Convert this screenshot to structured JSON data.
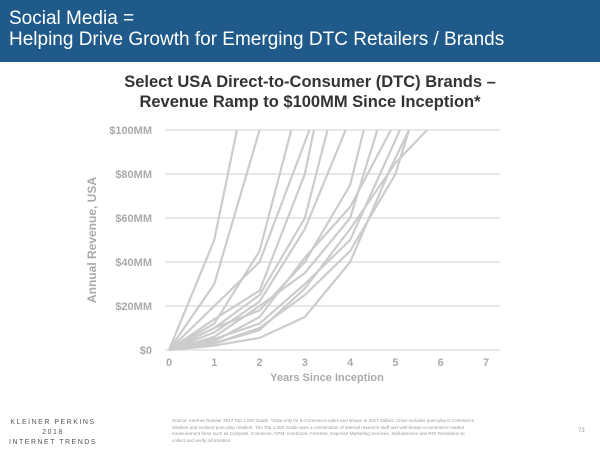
{
  "header": {
    "line1": "Social Media =",
    "line2": "Helping Drive Growth for Emerging DTC Retailers / Brands"
  },
  "footer": {
    "brand": [
      "KLEINER PERKINS",
      "2018",
      "INTERNET TRENDS"
    ],
    "source": "Source: Internet Retailer 2017 Top 1,000 Guide. *Data only for E-Commerce sales and shown in 2017 dollars. Chart includes pure-play E-Commerce retailers and evolved pure-play retailers. The Top 1,000 Guide uses a combination of internal research staff and well-known e-commerce market measurement firms such as Compete, Comscore, KPM, comScore, ForeSee, Experian Marketing Services, StellaService and ROI Revolution to collect and verify information.",
    "page": "73"
  },
  "chart_data": {
    "type": "line",
    "title": "Select USA Direct-to-Consumer (DTC) Brands – Revenue Ramp to $100MM Since Inception*",
    "title_lines": [
      "Select USA Direct-to-Consumer (DTC) Brands –",
      "Revenue Ramp to $100MM Since Inception*"
    ],
    "xlabel": "Years Since Inception",
    "ylabel": "Annual Revenue, USA",
    "xlim": [
      0,
      7
    ],
    "ylim": [
      0,
      100
    ],
    "xticks": [
      "0",
      "1",
      "2",
      "3",
      "4",
      "5",
      "6",
      "7"
    ],
    "yticks": [
      {
        "v": 0,
        "label": "$0"
      },
      {
        "v": 20,
        "label": "$20MM"
      },
      {
        "v": 40,
        "label": "$40MM"
      },
      {
        "v": 60,
        "label": "$60MM"
      },
      {
        "v": 80,
        "label": "$80MM"
      },
      {
        "v": 100,
        "label": "$100MM"
      }
    ],
    "grid": true,
    "color": "#cccccc",
    "series": [
      {
        "x": [
          0,
          1,
          1.5
        ],
        "y": [
          0,
          50,
          100
        ]
      },
      {
        "x": [
          0,
          1,
          2
        ],
        "y": [
          0,
          30,
          100
        ]
      },
      {
        "x": [
          0,
          1,
          2,
          2.7
        ],
        "y": [
          0,
          12,
          45,
          100
        ]
      },
      {
        "x": [
          0,
          1,
          2,
          3.1
        ],
        "y": [
          0,
          20,
          40,
          100
        ]
      },
      {
        "x": [
          0,
          1,
          2,
          3,
          3.2
        ],
        "y": [
          0,
          14,
          27,
          80,
          100
        ]
      },
      {
        "x": [
          0,
          1,
          2,
          3,
          3.5
        ],
        "y": [
          0,
          10,
          25,
          60,
          100
        ]
      },
      {
        "x": [
          0,
          1,
          2,
          3,
          3.9
        ],
        "y": [
          0,
          8,
          22,
          55,
          100
        ]
      },
      {
        "x": [
          0,
          1,
          2,
          3,
          4,
          4.3
        ],
        "y": [
          0,
          10,
          18,
          40,
          75,
          100
        ]
      },
      {
        "x": [
          0,
          1,
          2,
          3,
          4,
          4.6
        ],
        "y": [
          0,
          6,
          20,
          35,
          60,
          100
        ]
      },
      {
        "x": [
          0,
          1,
          2,
          3,
          4,
          4.9
        ],
        "y": [
          0,
          4,
          15,
          42,
          65,
          100
        ]
      },
      {
        "x": [
          0,
          1,
          2,
          3,
          4,
          5.1
        ],
        "y": [
          0,
          5,
          12,
          30,
          50,
          100
        ]
      },
      {
        "x": [
          0,
          1,
          2,
          3,
          4,
          5,
          5.3
        ],
        "y": [
          0,
          3,
          10,
          25,
          45,
          80,
          100
        ]
      },
      {
        "x": [
          0,
          1,
          2,
          3,
          4,
          4.9,
          5.3
        ],
        "y": [
          0,
          2,
          5.5,
          15,
          40,
          83,
          100
        ]
      },
      {
        "x": [
          0,
          1,
          2,
          3,
          4,
          5,
          5.7
        ],
        "y": [
          0,
          3,
          9,
          28,
          55,
          85,
          100
        ]
      }
    ]
  }
}
